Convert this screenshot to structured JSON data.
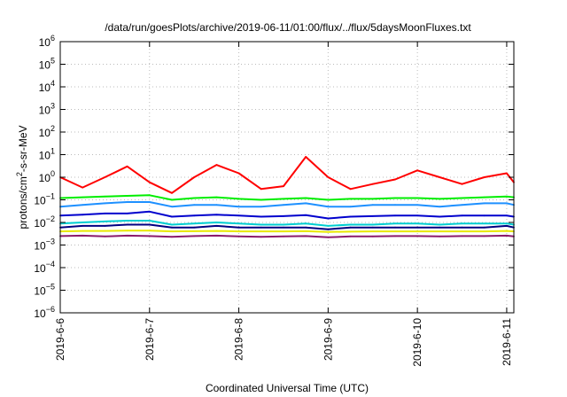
{
  "chart_data": {
    "type": "line",
    "title": "/data/run/goesPlots/archive/2019-06-11/01:00/flux/../flux/5daysMoonFluxes.txt",
    "xlabel": "Coordinated Universal Time (UTC)",
    "ylabel": "protons/cm²-s-sr-MeV",
    "ylabel_parts": {
      "pre": "protons/cm",
      "sup": "2",
      "post": "-s-sr-MeV"
    },
    "yscale": "log",
    "ylim": [
      -6,
      6
    ],
    "y_tick_exponents": [
      -6,
      -5,
      -4,
      -3,
      -2,
      -1,
      0,
      1,
      2,
      3,
      4,
      5,
      6
    ],
    "y_tick_base": "10",
    "xlim": [
      0,
      5.08
    ],
    "x_ticks": [
      {
        "x": 0,
        "label": "2019-6-6"
      },
      {
        "x": 1,
        "label": "2019-6-7"
      },
      {
        "x": 2,
        "label": "2019-6-8"
      },
      {
        "x": 3,
        "label": "2019-6-9"
      },
      {
        "x": 4,
        "label": "2019-6-10"
      },
      {
        "x": 5,
        "label": "2019-6-11"
      }
    ],
    "grid": true,
    "x": [
      0.0,
      0.25,
      0.5,
      0.75,
      1.0,
      1.25,
      1.5,
      1.75,
      2.0,
      2.25,
      2.5,
      2.75,
      3.0,
      3.25,
      3.5,
      3.75,
      4.0,
      4.25,
      4.5,
      4.75,
      5.0,
      5.08
    ],
    "series": [
      {
        "color": "#ff0000",
        "values": [
          1.0,
          0.35,
          1.0,
          3.0,
          0.6,
          0.2,
          1.0,
          3.5,
          1.5,
          0.3,
          0.4,
          8.0,
          1.0,
          0.3,
          0.5,
          0.8,
          2.0,
          1.0,
          0.5,
          1.0,
          1.5,
          0.6
        ]
      },
      {
        "color": "#00ee00",
        "values": [
          0.12,
          0.13,
          0.14,
          0.15,
          0.16,
          0.1,
          0.12,
          0.13,
          0.11,
          0.1,
          0.11,
          0.12,
          0.1,
          0.11,
          0.11,
          0.12,
          0.12,
          0.11,
          0.12,
          0.13,
          0.14,
          0.13
        ]
      },
      {
        "color": "#1e90ff",
        "values": [
          0.05,
          0.06,
          0.07,
          0.08,
          0.08,
          0.05,
          0.06,
          0.06,
          0.05,
          0.05,
          0.06,
          0.07,
          0.05,
          0.05,
          0.06,
          0.06,
          0.06,
          0.05,
          0.06,
          0.07,
          0.07,
          0.06
        ]
      },
      {
        "color": "#0000cd",
        "values": [
          0.02,
          0.022,
          0.025,
          0.025,
          0.03,
          0.018,
          0.02,
          0.022,
          0.02,
          0.018,
          0.019,
          0.021,
          0.015,
          0.018,
          0.019,
          0.02,
          0.02,
          0.018,
          0.02,
          0.02,
          0.02,
          0.018
        ]
      },
      {
        "color": "#00ced1",
        "values": [
          0.009,
          0.01,
          0.011,
          0.012,
          0.012,
          0.008,
          0.009,
          0.01,
          0.009,
          0.008,
          0.008,
          0.009,
          0.007,
          0.008,
          0.008,
          0.009,
          0.009,
          0.008,
          0.009,
          0.009,
          0.009,
          0.008
        ]
      },
      {
        "color": "#000080",
        "values": [
          0.006,
          0.007,
          0.007,
          0.008,
          0.008,
          0.006,
          0.006,
          0.007,
          0.006,
          0.006,
          0.006,
          0.006,
          0.005,
          0.006,
          0.006,
          0.006,
          0.006,
          0.006,
          0.006,
          0.006,
          0.007,
          0.006
        ]
      },
      {
        "color": "#e8e800",
        "values": [
          0.004,
          0.0042,
          0.0042,
          0.0043,
          0.0043,
          0.004,
          0.0041,
          0.0042,
          0.004,
          0.004,
          0.004,
          0.0041,
          0.0038,
          0.0039,
          0.004,
          0.004,
          0.004,
          0.004,
          0.004,
          0.004,
          0.0042,
          0.004
        ]
      },
      {
        "color": "#8b1a6b",
        "values": [
          0.0025,
          0.0026,
          0.0024,
          0.0026,
          0.0025,
          0.0023,
          0.0025,
          0.0026,
          0.0024,
          0.0023,
          0.0024,
          0.0025,
          0.0022,
          0.0024,
          0.0024,
          0.0025,
          0.0025,
          0.0024,
          0.0025,
          0.0025,
          0.0026,
          0.0024
        ]
      }
    ]
  }
}
